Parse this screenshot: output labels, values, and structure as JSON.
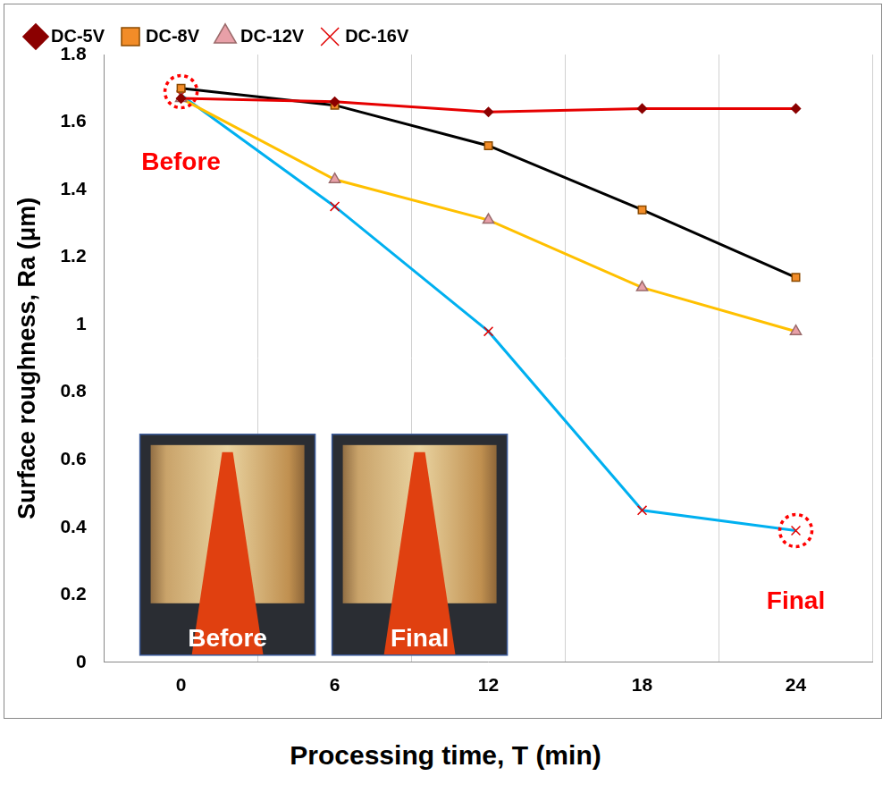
{
  "chart_data": {
    "type": "line",
    "x_label": "Processing time, T (min)",
    "y_label": "Surface roughness, Ra (μm)",
    "categories": [
      "0",
      "6",
      "12",
      "18",
      "24"
    ],
    "series": [
      {
        "name": "DC-5V",
        "color": "#e60000",
        "marker": "diamond",
        "values": [
          1.67,
          1.66,
          1.63,
          1.64,
          1.64
        ]
      },
      {
        "name": "DC-8V",
        "color": "#000000",
        "marker": "square",
        "values": [
          1.7,
          1.65,
          1.53,
          1.34,
          1.14
        ]
      },
      {
        "name": "DC-12V",
        "color": "#ffc000",
        "marker": "triangle",
        "values": [
          1.67,
          1.43,
          1.31,
          1.11,
          0.98
        ]
      },
      {
        "name": "DC-16V",
        "color": "#00b0f0",
        "marker": "x",
        "values": [
          1.68,
          1.35,
          0.98,
          0.45,
          0.39
        ]
      }
    ],
    "ylim": [
      0,
      1.8
    ],
    "yticks": [
      0,
      0.2,
      0.4,
      0.6,
      0.8,
      1,
      1.2,
      1.4,
      1.6,
      1.8
    ],
    "grid": true,
    "legend": "top",
    "annotations": [
      {
        "text": "Before",
        "x": "0",
        "y": 1.69,
        "color": "#ff0000"
      },
      {
        "text": "Final",
        "x": "24",
        "y": 0.39,
        "color": "#ff0000"
      }
    ],
    "inset_labels": [
      "Before",
      "Final"
    ]
  }
}
